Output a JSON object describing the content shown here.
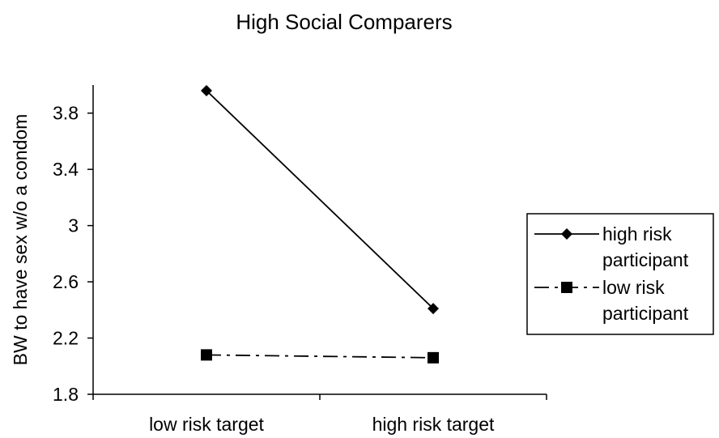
{
  "chart_data": {
    "type": "line",
    "title": "High Social Comparers",
    "xlabel": "",
    "ylabel": "BW to have sex w/o a condom",
    "categories": [
      "low risk target",
      "high risk target"
    ],
    "ylim": [
      1.8,
      4.0
    ],
    "yticks": [
      "1.8",
      "2.2",
      "2.6",
      "3",
      "3.4",
      "3.8"
    ],
    "grid": false,
    "legend_position": "right",
    "series": [
      {
        "name": "high risk participant",
        "name_lines": [
          "high risk",
          "participant"
        ],
        "values": [
          3.96,
          2.41
        ],
        "marker": "diamond",
        "line_style": "solid",
        "color": "#000000"
      },
      {
        "name": "low risk participant",
        "name_lines": [
          "low risk",
          "participant"
        ],
        "values": [
          2.08,
          2.06
        ],
        "marker": "square",
        "line_style": "dash-dot",
        "color": "#000000"
      }
    ]
  }
}
